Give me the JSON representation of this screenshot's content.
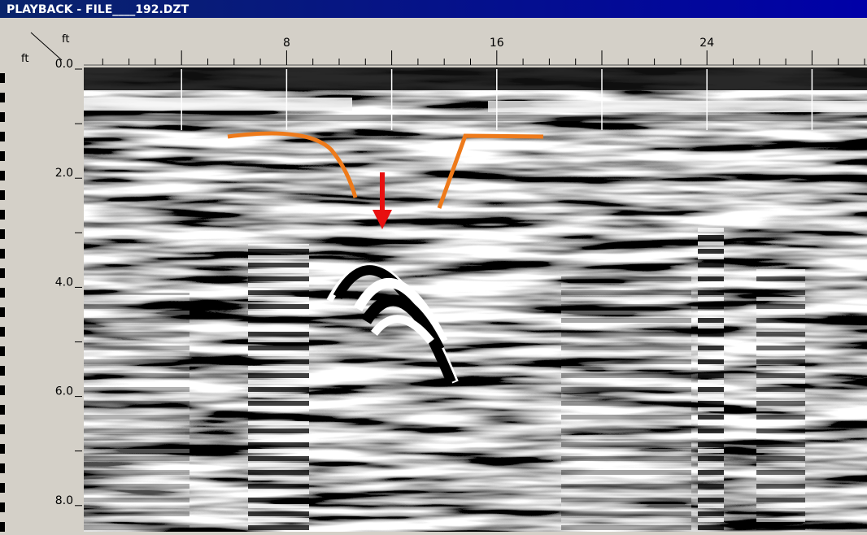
{
  "window": {
    "title": "PLAYBACK - FILE____192.DZT"
  },
  "ruler": {
    "corner_x_unit": "ft",
    "corner_y_unit": "ft",
    "x_labels": [
      "8",
      "16",
      "24"
    ],
    "y_labels": [
      "0.0",
      "2.0",
      "4.0",
      "6.0",
      "8.0"
    ]
  }
}
